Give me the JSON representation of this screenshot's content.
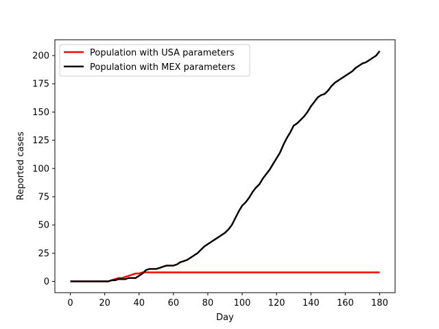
{
  "chart_data": {
    "type": "line",
    "title": "",
    "xlabel": "Day",
    "ylabel": "Reported cases",
    "xlim": [
      -9,
      189
    ],
    "ylim": [
      -10,
      214
    ],
    "xticks": [
      0,
      20,
      40,
      60,
      80,
      100,
      120,
      140,
      160,
      180
    ],
    "yticks": [
      0,
      25,
      50,
      75,
      100,
      125,
      150,
      175,
      200
    ],
    "grid": false,
    "legend": "top-left",
    "series": [
      {
        "name": "Population with USA parameters",
        "color": "#ff0000",
        "x": [
          0,
          20,
          22,
          24,
          26,
          28,
          30,
          32,
          34,
          36,
          38,
          40,
          42,
          44,
          50,
          60,
          80,
          100,
          120,
          140,
          160,
          180
        ],
        "y": [
          0,
          0,
          0,
          1,
          2,
          3,
          3,
          4,
          5,
          6,
          7,
          7,
          8,
          8,
          8,
          8,
          8,
          8,
          8,
          8,
          8,
          8
        ]
      },
      {
        "name": "Population with MEX parameters",
        "color": "#000000",
        "x": [
          0,
          20,
          22,
          24,
          26,
          28,
          30,
          32,
          34,
          36,
          38,
          40,
          42,
          44,
          46,
          48,
          50,
          52,
          54,
          56,
          58,
          60,
          62,
          64,
          66,
          68,
          70,
          72,
          74,
          76,
          78,
          80,
          82,
          84,
          86,
          88,
          90,
          92,
          94,
          96,
          98,
          100,
          102,
          104,
          106,
          108,
          110,
          112,
          114,
          116,
          118,
          120,
          122,
          124,
          126,
          128,
          130,
          132,
          134,
          136,
          138,
          140,
          142,
          144,
          146,
          148,
          150,
          152,
          154,
          156,
          158,
          160,
          162,
          164,
          166,
          168,
          170,
          172,
          174,
          176,
          178,
          180
        ],
        "y": [
          0,
          0,
          0,
          1,
          1,
          2,
          2,
          2,
          3,
          3,
          3,
          5,
          7,
          10,
          11,
          11,
          11,
          12,
          13,
          14,
          14,
          14,
          15,
          17,
          18,
          19,
          21,
          23,
          25,
          28,
          31,
          33,
          35,
          37,
          39,
          41,
          43,
          46,
          50,
          56,
          62,
          67,
          70,
          74,
          79,
          83,
          86,
          91,
          95,
          99,
          104,
          109,
          114,
          121,
          127,
          132,
          138,
          140,
          143,
          146,
          150,
          155,
          159,
          163,
          165,
          166,
          169,
          173,
          176,
          178,
          180,
          182,
          184,
          186,
          189,
          191,
          193,
          194,
          196,
          198,
          200,
          204
        ]
      }
    ]
  }
}
